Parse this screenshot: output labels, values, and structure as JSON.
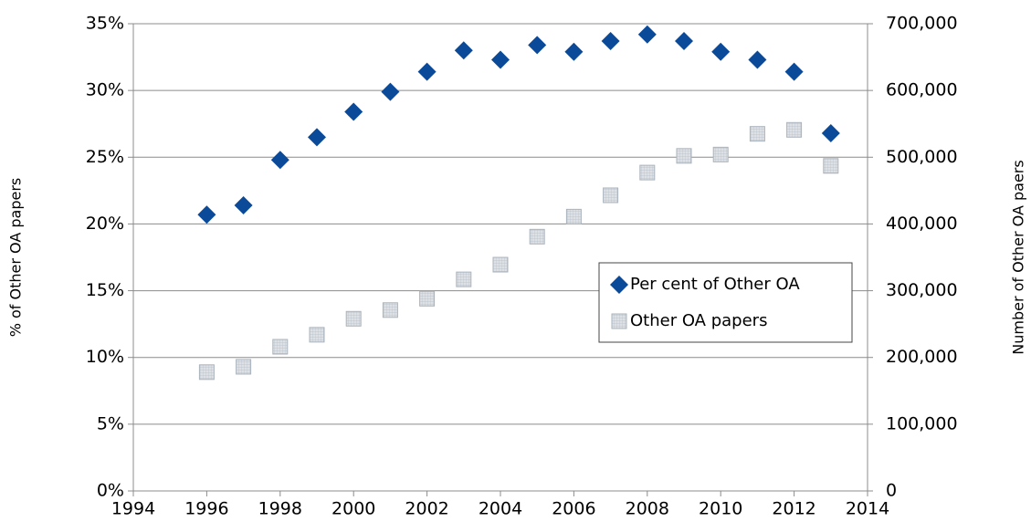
{
  "chart_data": {
    "type": "scatter",
    "x": [
      1996,
      1997,
      1998,
      1999,
      2000,
      2001,
      2002,
      2003,
      2004,
      2005,
      2006,
      2007,
      2008,
      2009,
      2010,
      2011,
      2012,
      2013
    ],
    "series": [
      {
        "name": "Per cent of Other OA",
        "color": "#0b4a99",
        "marker": "diamond",
        "values": [
          20.7,
          21.4,
          24.8,
          26.5,
          28.4,
          29.9,
          31.4,
          33.0,
          32.3,
          33.4,
          32.9,
          33.7,
          34.2,
          33.7,
          32.9,
          32.3,
          31.4,
          26.8
        ]
      },
      {
        "name": "Other OA papers",
        "color": "#d4d9de",
        "marker": "square",
        "axis": "y2",
        "values": [
          178000,
          186000,
          216000,
          234000,
          258000,
          271000,
          288000,
          317000,
          339000,
          381000,
          411000,
          443000,
          477000,
          502000,
          504000,
          535000,
          541000,
          487000
        ]
      }
    ],
    "ylabel": "% of Other OA papers",
    "y2label": "Number of Other OA paers",
    "xlim": [
      1994,
      2014
    ],
    "xticks": [
      1994,
      1996,
      1998,
      2000,
      2002,
      2004,
      2006,
      2008,
      2010,
      2012,
      2014
    ],
    "ylim": [
      0,
      35
    ],
    "yticks": [
      {
        "value": 0,
        "label": "0%"
      },
      {
        "value": 5,
        "label": "5%"
      },
      {
        "value": 10,
        "label": "10%"
      },
      {
        "value": 15,
        "label": "15%"
      },
      {
        "value": 20,
        "label": "20%"
      },
      {
        "value": 25,
        "label": "25%"
      },
      {
        "value": 30,
        "label": "30%"
      },
      {
        "value": 35,
        "label": "35%"
      }
    ],
    "y2lim": [
      0,
      700000
    ],
    "y2ticks": [
      0,
      {
        "value": 100000,
        "label": "100,000"
      },
      {
        "value": 200000,
        "label": "200,000"
      },
      {
        "value": 300000,
        "label": "300,000"
      },
      {
        "value": 400000,
        "label": "400,000"
      },
      {
        "value": 500000,
        "label": "500,000"
      },
      {
        "value": 600000,
        "label": "600,000"
      },
      {
        "value": 700000,
        "label": "700,000"
      }
    ],
    "grid": true,
    "legend": "center right"
  }
}
